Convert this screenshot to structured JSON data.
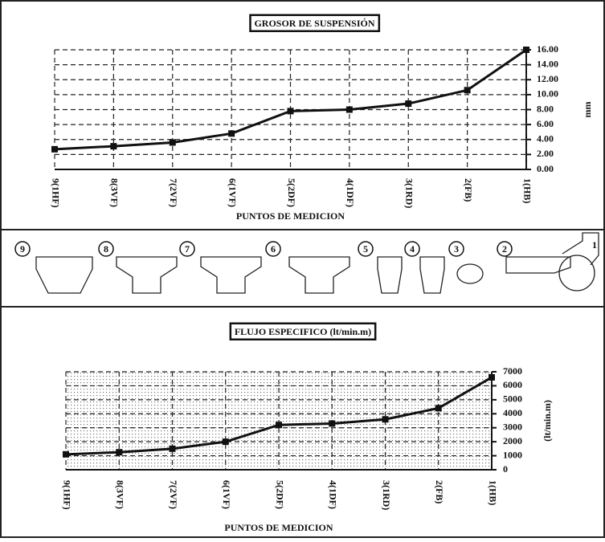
{
  "chart_data": [
    {
      "type": "line",
      "title": "GROSOR DE SUSPENSIÓN",
      "x_label": "PUNTOS DE MEDICION",
      "y_label": "mm",
      "categories": [
        "9(1HF)",
        "8(3VF)",
        "7(2VF)",
        "6(1VF)",
        "5(2DF)",
        "4(1DF)",
        "3(1RD)",
        "2(FB)",
        "1(HB)"
      ],
      "values": [
        2.7,
        3.1,
        3.6,
        4.8,
        7.8,
        8.0,
        8.8,
        10.6,
        16.0
      ],
      "color": "#111111",
      "ylim": [
        0,
        16
      ],
      "yticks": [
        {
          "value": 0,
          "label": "0.00"
        },
        {
          "value": 2,
          "label": "2.00"
        },
        {
          "value": 4,
          "label": "4.00"
        },
        {
          "value": 6,
          "label": "6.00"
        },
        {
          "value": 8,
          "label": "8.00"
        },
        {
          "value": 10,
          "label": "10.00"
        },
        {
          "value": 12,
          "label": "12.00"
        },
        {
          "value": 14,
          "label": "14.00"
        },
        {
          "value": 16,
          "label": "16.00"
        }
      ],
      "grid": true
    },
    {
      "type": "line",
      "title": "FLUJO ESPECIFICO (lt/min.m)",
      "x_label": "PUNTOS DE MEDICION",
      "y_label": "(lt/min.m)",
      "categories": [
        "9(1HF)",
        "8(3VF)",
        "7(2VF)",
        "6(1VF)",
        "5(2DF)",
        "4(1DF)",
        "3(1RD)",
        "2(FB)",
        "1(HB)"
      ],
      "values": [
        1100,
        1250,
        1500,
        2000,
        3200,
        3300,
        3600,
        4400,
        6600
      ],
      "color": "#111111",
      "ylim": [
        0,
        7000
      ],
      "yticks": [
        0,
        1000,
        2000,
        3000,
        4000,
        5000,
        6000,
        7000
      ],
      "grid": true
    }
  ],
  "diagram": {
    "labels": [
      "9",
      "8",
      "7",
      "6",
      "5",
      "4",
      "3",
      "2",
      "1"
    ]
  }
}
